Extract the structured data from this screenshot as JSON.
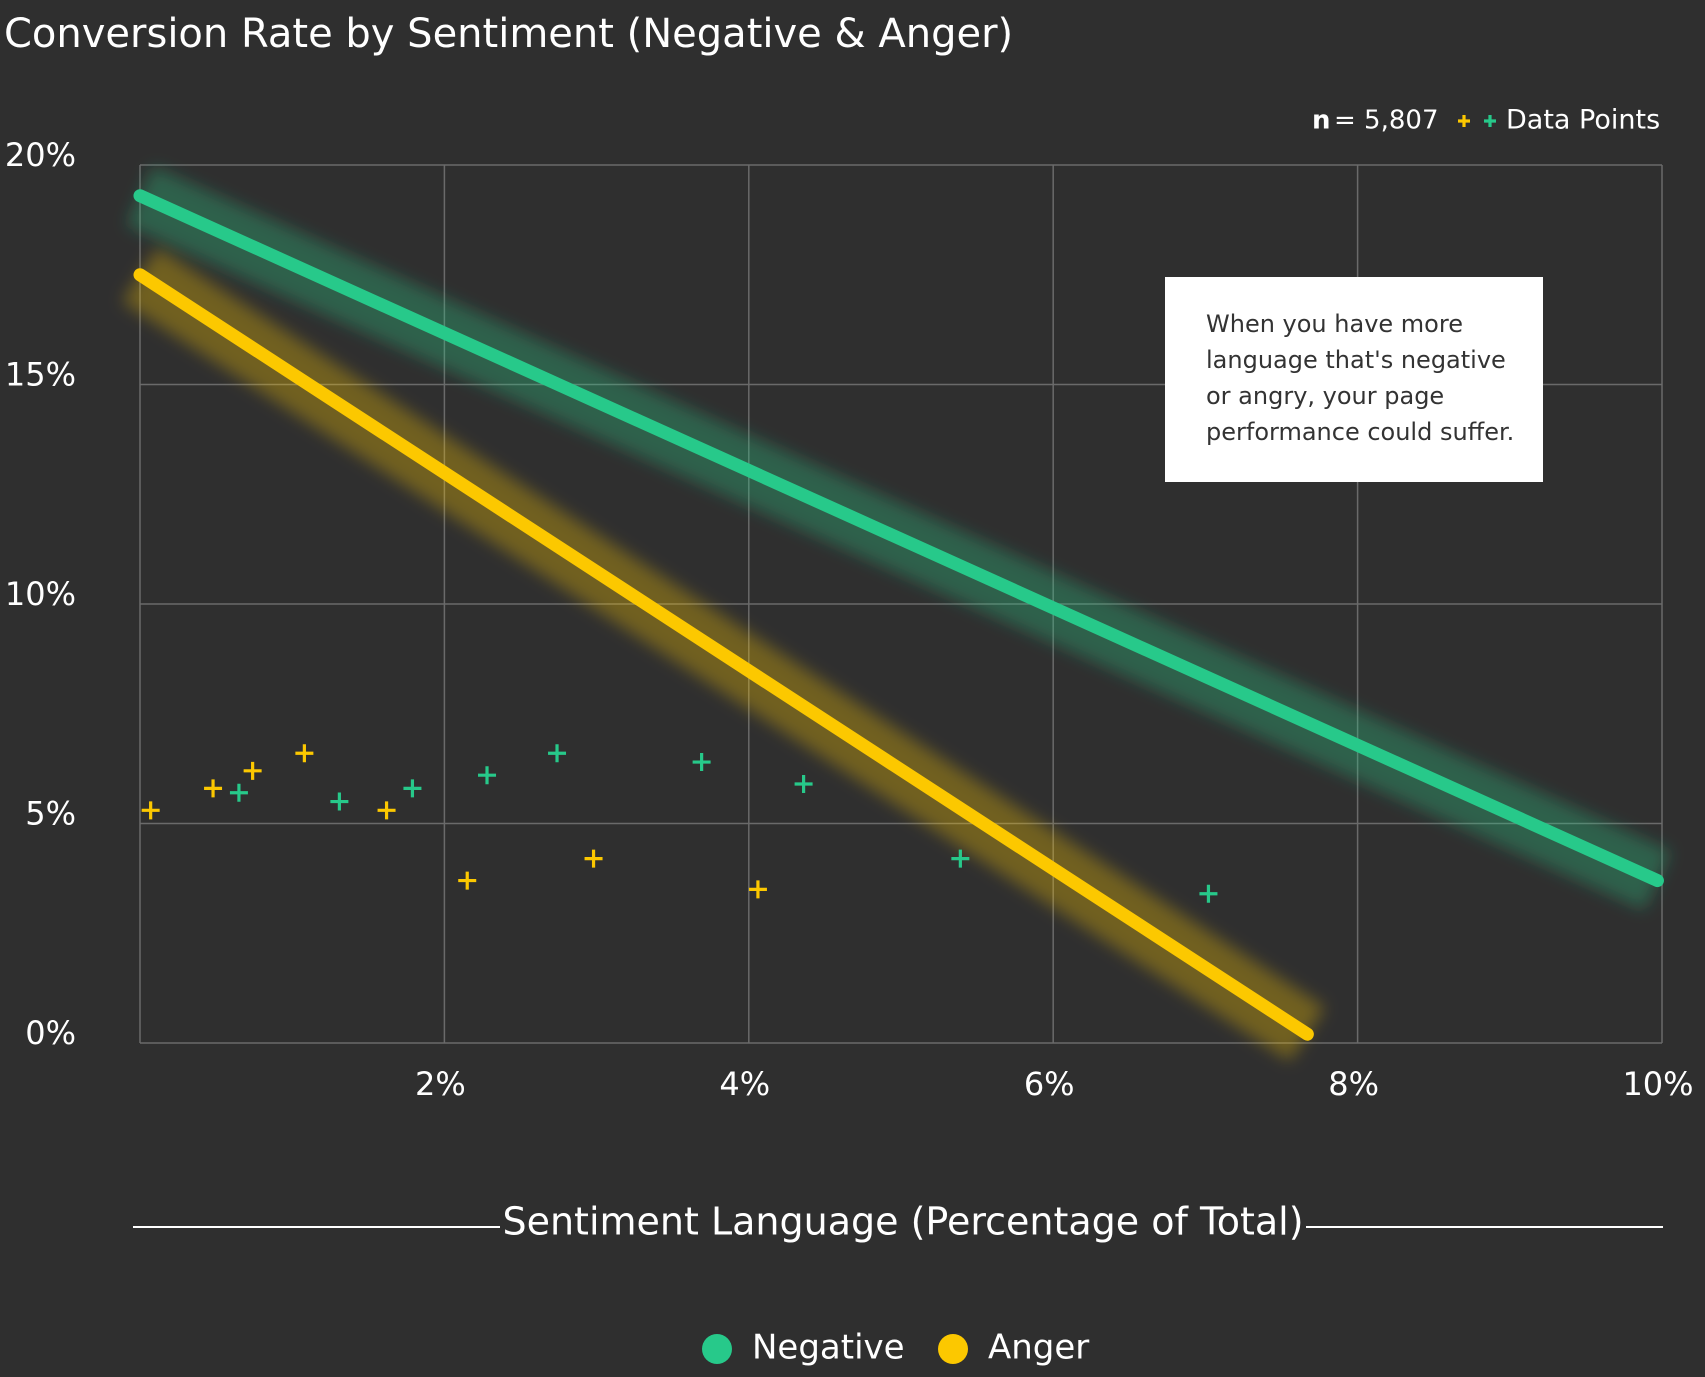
{
  "chart_data": {
    "type": "scatter",
    "title": "Conversion Rate by Sentiment (Negative & Anger)",
    "x_label": "Sentiment Language (Percentage of Total)",
    "sample_size": {
      "label": "n",
      "text": "= 5,807"
    },
    "points_legend": "Data Points",
    "annotation": [
      "When you have more",
      "language that's negative",
      "or angry, your page",
      "performance could suffer."
    ],
    "xlim": [
      0,
      10
    ],
    "ylim": [
      0,
      20
    ],
    "xticks": [
      {
        "value": 2,
        "label": "2%"
      },
      {
        "value": 4,
        "label": "4%"
      },
      {
        "value": 6,
        "label": "6%"
      },
      {
        "value": 8,
        "label": "8%"
      },
      {
        "value": 10,
        "label": "10%"
      }
    ],
    "yticks": [
      {
        "value": 0,
        "label": "0%"
      },
      {
        "value": 5,
        "label": "5%"
      },
      {
        "value": 10,
        "label": "10%"
      },
      {
        "value": 15,
        "label": "15%"
      },
      {
        "value": 20,
        "label": "20%"
      }
    ],
    "grid": true,
    "series": [
      {
        "name": "Negative",
        "color": "#27c98a",
        "x": [
          0.65,
          1.31,
          1.79,
          2.28,
          2.74,
          3.69,
          4.36,
          5.39,
          7.02
        ],
        "values": [
          5.7,
          5.5,
          5.8,
          6.1,
          6.6,
          6.4,
          5.9,
          4.2,
          3.4
        ],
        "trend_x": [
          0,
          9.97
        ],
        "trend_values": [
          19.3,
          3.7
        ]
      },
      {
        "name": "Anger",
        "color": "#fcc800",
        "x": [
          0.07,
          0.48,
          0.74,
          1.08,
          1.62,
          2.15,
          2.98,
          4.06
        ],
        "values": [
          5.3,
          5.8,
          6.2,
          6.6,
          5.3,
          3.7,
          4.2,
          3.5
        ],
        "trend_x": [
          0,
          7.67
        ],
        "trend_values": [
          17.5,
          0.2
        ]
      }
    ]
  }
}
